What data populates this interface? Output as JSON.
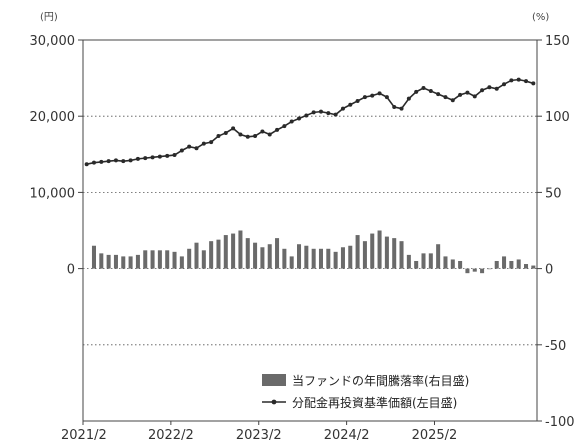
{
  "chart_data": {
    "type": "bar+line",
    "left_unit": "(円)",
    "right_unit": "(%)",
    "left_axis": {
      "ticks": [
        "30,000",
        "20,000",
        "10,000",
        "0"
      ],
      "values": [
        30000,
        20000,
        10000,
        0
      ],
      "range": [
        -20000,
        30000
      ]
    },
    "right_axis": {
      "ticks": [
        "150",
        "100",
        "50",
        "0",
        "-50",
        "-100"
      ],
      "values": [
        150,
        100,
        50,
        0,
        -50,
        -100
      ],
      "range": [
        -100,
        150
      ]
    },
    "x_ticks": [
      "2021/2",
      "2022/2",
      "2023/2",
      "2024/2",
      "2025/2"
    ],
    "x_tick_index": [
      0,
      12,
      24,
      36,
      48
    ],
    "legend": {
      "bar_label": "当ファンドの年間騰落率(右目盛)",
      "line_label": "分配金再投資基準価額(左目盛)"
    },
    "colors": {
      "bar": "#6a6a6a",
      "line": "#2a2a2a",
      "grid": "#555555"
    },
    "series": [
      {
        "name": "当ファンドの年間騰落率(右目盛)",
        "axis": "right",
        "kind": "bar",
        "values": [
          null,
          15,
          10,
          9,
          9,
          8,
          8,
          9,
          12,
          12,
          12,
          12,
          11,
          8,
          13,
          17,
          12,
          18,
          19,
          22,
          23,
          25,
          20,
          17,
          14,
          16,
          20,
          13,
          8,
          16,
          15,
          13,
          13,
          13,
          11,
          14,
          15,
          22,
          18,
          23,
          25,
          21,
          20,
          18,
          9,
          5,
          10,
          10,
          16,
          8,
          6,
          5,
          -3,
          -2,
          -3,
          0,
          5,
          8,
          5,
          6,
          3,
          2
        ]
      },
      {
        "name": "分配金再投資基準価額(左目盛)",
        "axis": "left",
        "kind": "line",
        "values": [
          13700,
          13900,
          14000,
          14100,
          14200,
          14100,
          14200,
          14400,
          14500,
          14600,
          14700,
          14800,
          14900,
          15500,
          16000,
          15800,
          16400,
          16600,
          17400,
          17800,
          18400,
          17600,
          17300,
          17400,
          18000,
          17600,
          18200,
          18700,
          19300,
          19700,
          20100,
          20500,
          20600,
          20400,
          20200,
          21000,
          21500,
          22000,
          22500,
          22700,
          23000,
          22500,
          21200,
          21000,
          22300,
          23200,
          23700,
          23300,
          22900,
          22500,
          22100,
          22800,
          23100,
          22600,
          23400,
          23800,
          23600,
          24200,
          24700,
          24800,
          24600,
          24300
        ]
      }
    ]
  }
}
